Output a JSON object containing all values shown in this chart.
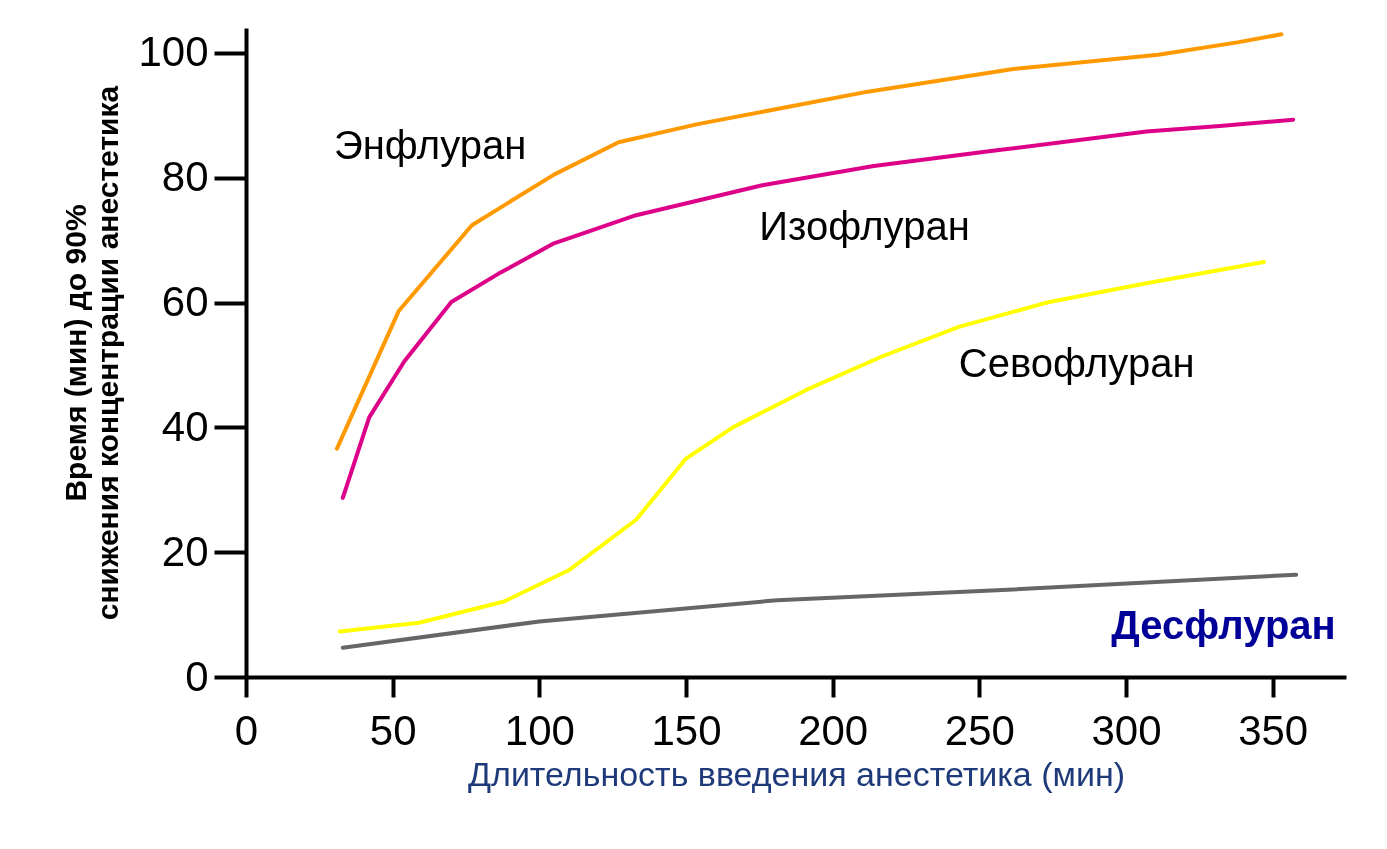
{
  "chart_data": {
    "type": "line",
    "xlabel": "Длительность введения анестетика (мин)",
    "ylabel": "Время (мин) до 90% снижения концентрации анестетика",
    "xlim": [
      0,
      375
    ],
    "ylim": [
      0,
      104
    ],
    "xticks": [
      0,
      50,
      100,
      150,
      200,
      250,
      300,
      350
    ],
    "yticks": [
      0,
      20,
      40,
      60,
      80,
      100
    ],
    "grid": false,
    "legend": false,
    "marker": "none",
    "line_style": "solid",
    "series": [
      {
        "name": "Энфлуран",
        "color": "#ff9900",
        "x": [
          31,
          52,
          77,
          105,
          127,
          154,
          212,
          261,
          311,
          338,
          353
        ],
        "values": [
          36.6,
          58.6,
          72.4,
          80.5,
          85.7,
          88.6,
          93.8,
          97.4,
          99.7,
          101.7,
          103
        ]
      },
      {
        "name": "Изофлуран",
        "color": "#dd0088",
        "x": [
          33,
          42,
          54,
          70,
          86,
          105,
          133,
          176,
          214,
          256,
          307,
          332,
          357
        ],
        "values": [
          28.7,
          41.6,
          50.6,
          60.1,
          64.6,
          69.5,
          74,
          78.8,
          81.9,
          84.4,
          87.4,
          88.3,
          89.3
        ]
      },
      {
        "name": "Севофлуран",
        "color": "#ffff00",
        "x": [
          32,
          59,
          88,
          110,
          133,
          150,
          166,
          191,
          217,
          243,
          273,
          307,
          347
        ],
        "values": [
          7.3,
          8.7,
          12.1,
          17.1,
          25.2,
          35,
          40,
          46,
          51.4,
          56.1,
          60,
          63.1,
          66.5
        ]
      },
      {
        "name": "Десфлуран",
        "color": "#666666",
        "x": [
          33,
          100,
          181,
          256,
          358
        ],
        "values": [
          4.7,
          8.9,
          12.3,
          13.9,
          16.4
        ]
      }
    ]
  }
}
